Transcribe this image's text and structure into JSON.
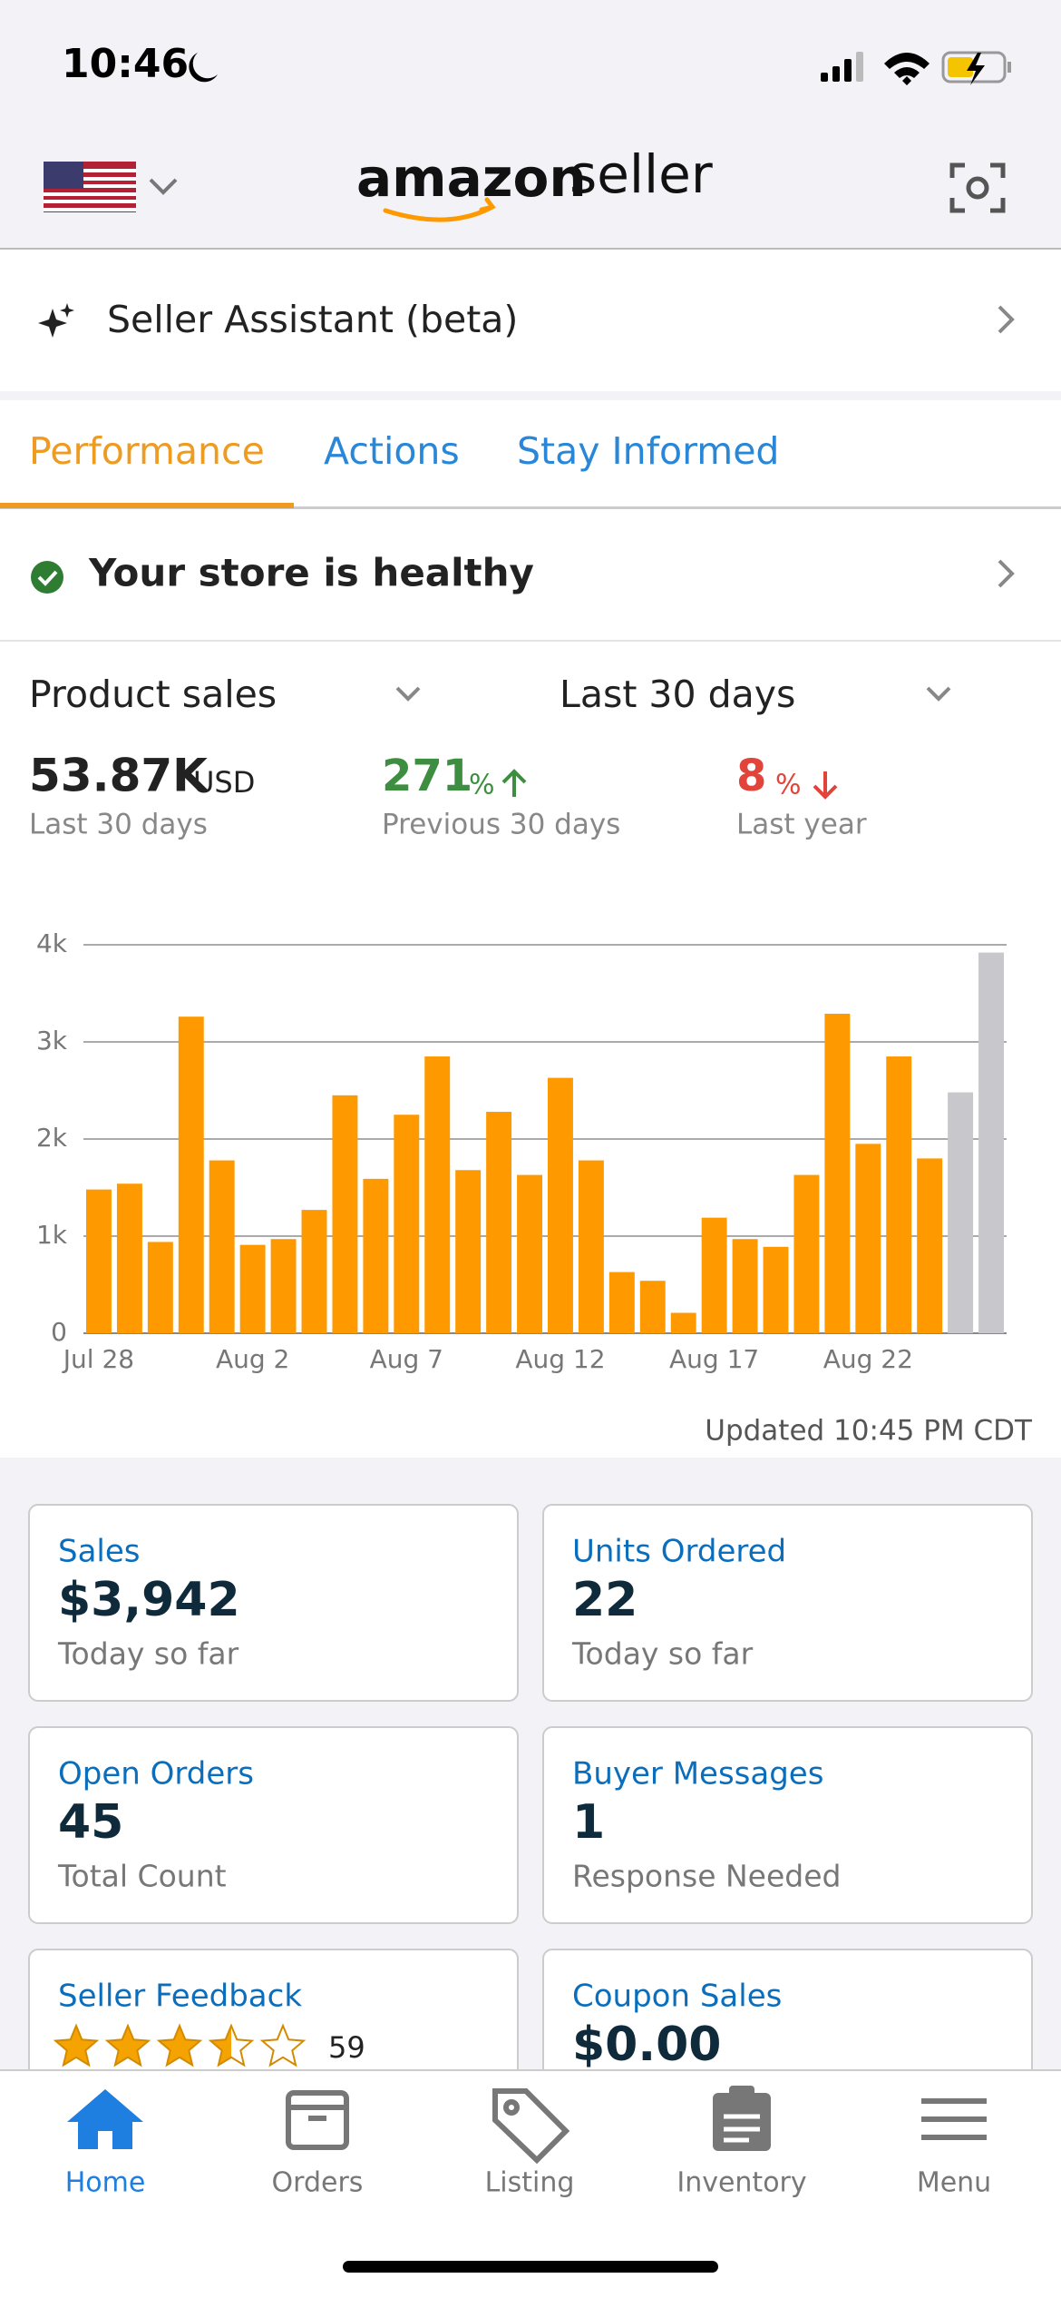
{
  "status_bar": {
    "time": "10:46"
  },
  "header": {
    "brand": "amazon",
    "product": "seller"
  },
  "assistant": {
    "label": "Seller Assistant (beta)"
  },
  "tabs": [
    "Performance",
    "Actions",
    "Stay Informed"
  ],
  "health": {
    "label": "Your store is healthy"
  },
  "selectors": {
    "metric": "Product sales",
    "period": "Last 30 days"
  },
  "summary": [
    {
      "value": "53.87K",
      "unit": "USD",
      "caption": "Last 30 days"
    },
    {
      "value": "271",
      "unit": "%",
      "caption": "Previous 30 days"
    },
    {
      "value": "8",
      "unit": "%",
      "caption": "Last year"
    }
  ],
  "chart_data": {
    "type": "bar",
    "categories": [
      "Jul 28",
      null,
      null,
      null,
      null,
      "Aug 2",
      null,
      null,
      null,
      null,
      "Aug 7",
      null,
      null,
      null,
      null,
      "Aug 12",
      null,
      null,
      null,
      null,
      "Aug 17",
      null,
      null,
      null,
      null,
      "Aug 22",
      null,
      null,
      null,
      null
    ],
    "values": [
      1480,
      1540,
      940,
      3260,
      1780,
      910,
      970,
      1270,
      2450,
      1590,
      2250,
      2850,
      1680,
      2280,
      1630,
      2630,
      1780,
      630,
      540,
      210,
      1190,
      970,
      890,
      1630,
      3290,
      1950,
      2850,
      1800,
      2480,
      3920
    ],
    "color": "#ff9900",
    "bar_colors": [
      "#ff9900",
      "#ff9900",
      "#ff9900",
      "#ff9900",
      "#ff9900",
      "#ff9900",
      "#ff9900",
      "#ff9900",
      "#ff9900",
      "#ff9900",
      "#ff9900",
      "#ff9900",
      "#ff9900",
      "#ff9900",
      "#ff9900",
      "#ff9900",
      "#ff9900",
      "#ff9900",
      "#ff9900",
      "#ff9900",
      "#ff9900",
      "#ff9900",
      "#ff9900",
      "#ff9900",
      "#ff9900",
      "#ff9900",
      "#ff9900",
      "#ff9900",
      "#c7c7cc",
      "#c7c7cc"
    ],
    "ylim": [
      0,
      4000
    ],
    "yticks": [
      0,
      {
        "value": 1000,
        "label": "1k"
      },
      {
        "value": 2000,
        "label": "2k"
      },
      {
        "value": 3000,
        "label": "3k"
      },
      {
        "value": 4000,
        "label": "4k"
      }
    ],
    "grid": true
  },
  "updated": "Updated 10:45 PM CDT",
  "cards": [
    {
      "title": "Sales",
      "value": "$3,942",
      "caption": "Today so far"
    },
    {
      "title": "Units Ordered",
      "value": "22",
      "caption": "Today so far"
    },
    {
      "title": "Open Orders",
      "value": "45",
      "caption": "Total Count"
    },
    {
      "title": "Buyer Messages",
      "value": "1",
      "caption": "Response Needed"
    },
    {
      "title": "Seller Feedback",
      "value": "59"
    },
    {
      "title": "Coupon Sales",
      "value": "$0.00"
    }
  ],
  "nav": [
    "Home",
    "Orders",
    "Listing",
    "Inventory",
    "Menu"
  ]
}
